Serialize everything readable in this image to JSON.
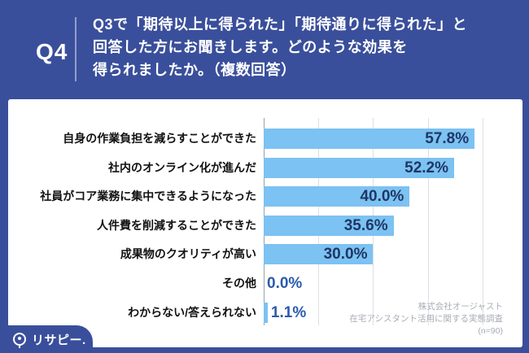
{
  "header": {
    "question_number": "Q4",
    "question_text": "Q3で「期待以上に得られた」「期待通りに得られた」と\n回答した方にお聞きします。どのような効果を\n得られましたか。（複数回答）"
  },
  "chart_data": {
    "type": "bar",
    "orientation": "horizontal",
    "title": "",
    "xlabel": "",
    "ylabel": "",
    "categories": [
      "自身の作業負担を減らすことができた",
      "社内のオンライン化が進んだ",
      "社員がコア業務に集中できるようになった",
      "人件費を削減することができた",
      "成果物のクオリティが高い",
      "その他",
      "わからない/答えられない"
    ],
    "values": [
      57.8,
      52.2,
      40.0,
      35.6,
      30.0,
      0.0,
      1.1
    ],
    "value_labels": [
      "57.8%",
      "52.2%",
      "40.0%",
      "35.6%",
      "30.0%",
      "0.0%",
      "1.1%"
    ],
    "unit": "%",
    "xlim": [
      0,
      63
    ],
    "gridlines_percent": [
      0,
      15,
      30,
      45,
      60
    ],
    "grid": true,
    "legend": false,
    "bar_color": "#7CC2F2",
    "label_color_inside": "#1E3765",
    "label_color_outside": "#2B5BAC"
  },
  "footer": {
    "source_lines": [
      "株式会社オージャスト",
      "在宅アシスタント活用に関する実態調査",
      "(n=90)"
    ]
  },
  "logo": {
    "brand": "リサピー.",
    "icon": "magnifier-icon"
  },
  "colors": {
    "page_background": "#3A4F9B",
    "panel_background": "#FFFFFF",
    "header_text": "#FFFFFF",
    "category_text": "#111111",
    "gridline": "#DCDFE6",
    "axis": "#9AA0AA",
    "source_text": "#A9ADB5"
  }
}
